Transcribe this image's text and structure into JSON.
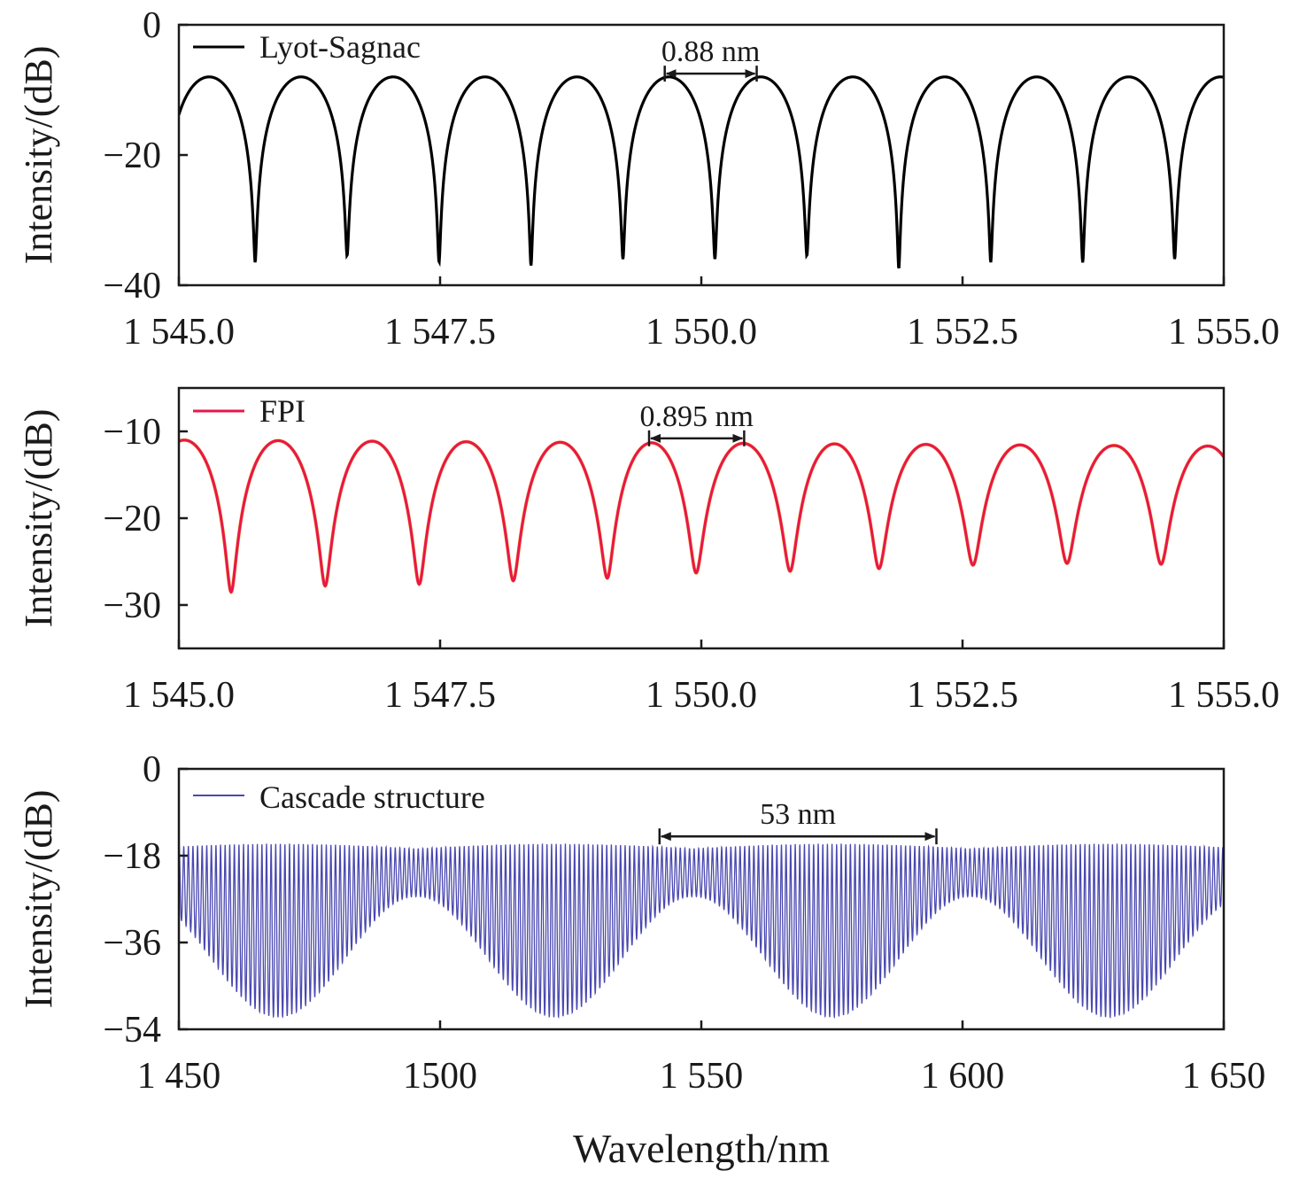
{
  "figure": {
    "xlabel": "Wavelength/nm"
  },
  "chart_data": [
    {
      "type": "line",
      "ylabel": "Intensity/(dB)",
      "xlim": [
        1545.0,
        1555.0
      ],
      "ylim": [
        -40,
        0
      ],
      "x_ticks": [
        1545.0,
        1547.5,
        1550.0,
        1552.5,
        1555.0
      ],
      "x_tick_labels": [
        "1 545.0",
        "1 547.5",
        "1 550.0",
        "1 552.5",
        "1 555.0"
      ],
      "y_ticks": [
        0,
        -20,
        -40
      ],
      "y_tick_labels": [
        "0",
        "−20",
        "−40"
      ],
      "legend_position": "top-left",
      "series": [
        {
          "name": "Lyot-Sagnac",
          "color": "#000000",
          "period_nm": 0.88,
          "peak_db": -8,
          "dip_wavelengths_nm": [
            1545.73,
            1546.61,
            1547.49,
            1548.37,
            1549.25,
            1550.13,
            1551.01,
            1551.89,
            1552.77,
            1553.65,
            1554.53
          ],
          "dip_values_db": [
            -36.5,
            -35.5,
            -36.5,
            -37,
            -36,
            -36,
            -35.5,
            -37.5,
            -36.5,
            -36.5,
            -36
          ]
        }
      ],
      "annotation": {
        "text": "0.88 nm",
        "from_x": 1549.65,
        "to_x": 1550.53,
        "y": -7.5
      }
    },
    {
      "type": "line",
      "ylabel": "Intensity/(dB)",
      "xlim": [
        1545.0,
        1555.0
      ],
      "ylim": [
        -35,
        -5
      ],
      "x_ticks": [
        1545.0,
        1547.5,
        1550.0,
        1552.5,
        1555.0
      ],
      "x_tick_labels": [
        "1 545.0",
        "1 547.5",
        "1 550.0",
        "1 552.5",
        "1 555.0"
      ],
      "y_ticks": [
        -10,
        -20,
        -30
      ],
      "y_tick_labels": [
        "−10",
        "−20",
        "−30"
      ],
      "legend_position": "top-left",
      "series": [
        {
          "name": "FPI",
          "color": "#e8174e",
          "period_nm": 0.895,
          "peak_db_start": -11.0,
          "peak_db_end": -11.7,
          "dip_wavelengths_nm": [
            1545.5,
            1546.4,
            1547.3,
            1548.2,
            1549.1,
            1549.95,
            1550.85,
            1551.7,
            1552.6,
            1553.5,
            1554.4
          ],
          "dip_values_db": [
            -28.5,
            -27.8,
            -27.6,
            -27.2,
            -26.9,
            -26.3,
            -26.1,
            -25.8,
            -25.4,
            -25.2,
            -25.3
          ]
        }
      ],
      "annotation": {
        "text": "0.895 nm",
        "from_x": 1549.5,
        "to_x": 1550.41,
        "y": -10.8
      }
    },
    {
      "type": "line",
      "ylabel": "Intensity/(dB)",
      "xlim": [
        1450,
        1650
      ],
      "ylim": [
        -54,
        0
      ],
      "x_ticks": [
        1450,
        1500,
        1550,
        1600,
        1650
      ],
      "x_tick_labels": [
        "1 450",
        "1500",
        "1 550",
        "1 600",
        "1 650"
      ],
      "y_ticks": [
        0,
        -18,
        -36,
        -54
      ],
      "y_tick_labels": [
        "0",
        "−18",
        "−36",
        "−54"
      ],
      "legend_position": "top-left",
      "series": [
        {
          "name": "Cascade structure",
          "color": "#4a48b0",
          "fine_period_nm": 0.88,
          "envelope_period_nm": 53,
          "envelope_max_db": -15.5,
          "envelope_min_db": -52,
          "overlap_node_wavelengths_nm": [
            1469,
            1520,
            1569,
            1621
          ],
          "envelope_peak_wavelengths_nm": [
            1492,
            1543,
            1596,
            1648
          ]
        }
      ],
      "annotation": {
        "text": "53 nm",
        "from_x": 1542,
        "to_x": 1595,
        "y": -14
      }
    }
  ]
}
